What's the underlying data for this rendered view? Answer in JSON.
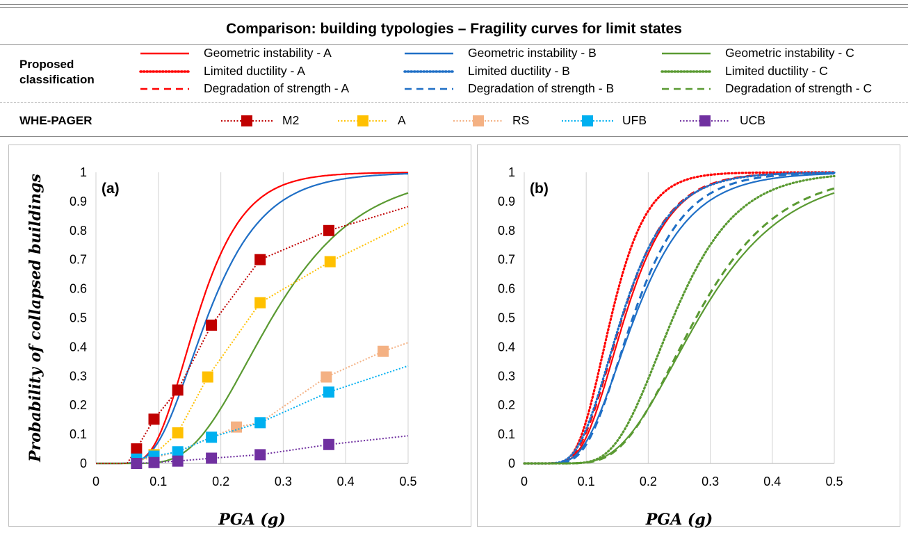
{
  "title": "Comparison: building typologies – Fragility curves for limit states",
  "legend": {
    "proposed_label": [
      "Proposed",
      "classification"
    ],
    "pager_label": "WHE-PAGER",
    "proposed_items": [
      {
        "label": "Geometric instability - A",
        "color": "#ff0000",
        "style": "solid"
      },
      {
        "label": "Limited ductility - A",
        "color": "#ff0000",
        "style": "dotted"
      },
      {
        "label": "Degradation of strength - A",
        "color": "#ff0000",
        "style": "dashed"
      },
      {
        "label": "Geometric instability - B",
        "color": "#1f6fc6",
        "style": "solid"
      },
      {
        "label": "Limited ductility - B",
        "color": "#1f6fc6",
        "style": "dotted"
      },
      {
        "label": "Degradation of strength - B",
        "color": "#1f6fc6",
        "style": "dashed"
      },
      {
        "label": "Geometric instability - C",
        "color": "#5a9a32",
        "style": "solid"
      },
      {
        "label": "Limited ductility - C",
        "color": "#5a9a32",
        "style": "dotted"
      },
      {
        "label": "Degradation of strength - C",
        "color": "#5a9a32",
        "style": "dashed"
      }
    ],
    "pager_items": [
      {
        "label": "M2",
        "color": "#c00000"
      },
      {
        "label": "A",
        "color": "#ffc000"
      },
      {
        "label": "RS",
        "color": "#f4b183"
      },
      {
        "label": "UFB",
        "color": "#00b0f0"
      },
      {
        "label": "UCB",
        "color": "#7030a0"
      }
    ]
  },
  "chart_data": [
    {
      "type": "line",
      "panel_label": "(a)",
      "xlabel": "PGA (g)",
      "ylabel": "Probability of collapsed buildings",
      "xlim": [
        0,
        0.5
      ],
      "ylim": [
        0,
        1
      ],
      "x_ticks": [
        "0",
        "0.1",
        "0.2",
        "0.3",
        "0.4",
        "0.5"
      ],
      "y_ticks": [
        "0",
        "0.1",
        "0.2",
        "0.3",
        "0.4",
        "0.5",
        "0.6",
        "0.7",
        "0.8",
        "0.9",
        "1"
      ],
      "grid": "vertical",
      "series": [
        {
          "name": "Geometric instability - A",
          "color": "#ff0000",
          "style": "solid",
          "kind": "lognormal",
          "median": 0.162,
          "beta": 0.36
        },
        {
          "name": "Geometric instability - B",
          "color": "#1f6fc6",
          "style": "solid",
          "kind": "lognormal",
          "median": 0.178,
          "beta": 0.4
        },
        {
          "name": "Geometric instability - C",
          "color": "#5a9a32",
          "style": "solid",
          "kind": "lognormal",
          "median": 0.282,
          "beta": 0.39
        },
        {
          "name": "M2",
          "color": "#c00000",
          "style": "markers",
          "x": [
            0,
            0.05,
            0.065,
            0.093,
            0.131,
            0.185,
            0.263,
            0.373,
            0.5
          ],
          "y": [
            0,
            0,
            0.05,
            0.152,
            0.252,
            0.475,
            0.7,
            0.8,
            0.882
          ],
          "marker_idx": [
            2,
            3,
            4,
            5,
            6,
            7
          ]
        },
        {
          "name": "A",
          "color": "#ffc000",
          "style": "markers",
          "x": [
            0.065,
            0.093,
            0.131,
            0.179,
            0.263,
            0.375,
            0.5
          ],
          "y": [
            0.005,
            0.03,
            0.105,
            0.297,
            0.552,
            0.693,
            0.825
          ],
          "marker_idx": [
            1,
            2,
            3,
            4,
            5
          ]
        },
        {
          "name": "RS",
          "color": "#f4b183",
          "style": "markers",
          "x": [
            0.065,
            0.093,
            0.131,
            0.185,
            0.225,
            0.263,
            0.369,
            0.46,
            0.5
          ],
          "y": [
            0.01,
            0.02,
            0.04,
            0.09,
            0.125,
            0.14,
            0.297,
            0.385,
            0.415
          ],
          "marker_idx": [
            4,
            6,
            7
          ]
        },
        {
          "name": "UFB",
          "color": "#00b0f0",
          "style": "markers",
          "x": [
            0.065,
            0.093,
            0.131,
            0.185,
            0.263,
            0.373,
            0.5
          ],
          "y": [
            0.015,
            0.025,
            0.04,
            0.09,
            0.14,
            0.245,
            0.335
          ],
          "marker_idx": [
            0,
            1,
            2,
            3,
            4,
            5
          ]
        },
        {
          "name": "UCB",
          "color": "#7030a0",
          "style": "markers",
          "x": [
            0.065,
            0.093,
            0.131,
            0.185,
            0.263,
            0.373,
            0.5
          ],
          "y": [
            0.0,
            0.003,
            0.008,
            0.018,
            0.03,
            0.065,
            0.095
          ],
          "marker_idx": [
            0,
            1,
            2,
            3,
            4,
            5
          ]
        }
      ]
    },
    {
      "type": "line",
      "panel_label": "(b)",
      "xlabel": "PGA (g)",
      "ylabel": "",
      "xlim": [
        0,
        0.5
      ],
      "ylim": [
        0,
        1
      ],
      "x_ticks": [
        "0",
        "0.1",
        "0.2",
        "0.3",
        "0.4",
        "0.5"
      ],
      "y_ticks": [
        "0",
        "0.1",
        "0.2",
        "0.3",
        "0.4",
        "0.5",
        "0.6",
        "0.7",
        "0.8",
        "0.9",
        "1"
      ],
      "grid": "vertical",
      "series": [
        {
          "name": "Limited ductility - A",
          "color": "#ff0000",
          "style": "dotted",
          "kind": "lognormal",
          "median": 0.14,
          "beta": 0.32
        },
        {
          "name": "Degradation of strength - A",
          "color": "#ff0000",
          "style": "dashed",
          "kind": "lognormal",
          "median": 0.158,
          "beta": 0.37
        },
        {
          "name": "Geometric instability - A",
          "color": "#ff0000",
          "style": "solid",
          "kind": "lognormal",
          "median": 0.162,
          "beta": 0.36
        },
        {
          "name": "Limited ductility - B",
          "color": "#1f6fc6",
          "style": "dotted",
          "kind": "lognormal",
          "median": 0.157,
          "beta": 0.38
        },
        {
          "name": "Degradation of strength - B",
          "color": "#1f6fc6",
          "style": "dashed",
          "kind": "lognormal",
          "median": 0.175,
          "beta": 0.37
        },
        {
          "name": "Geometric instability - B",
          "color": "#1f6fc6",
          "style": "solid",
          "kind": "lognormal",
          "median": 0.178,
          "beta": 0.4
        },
        {
          "name": "Limited ductility - C",
          "color": "#5a9a32",
          "style": "dotted",
          "kind": "lognormal",
          "median": 0.24,
          "beta": 0.33
        },
        {
          "name": "Degradation of strength - C",
          "color": "#5a9a32",
          "style": "dashed",
          "kind": "lognormal",
          "median": 0.277,
          "beta": 0.37
        },
        {
          "name": "Geometric instability - C",
          "color": "#5a9a32",
          "style": "solid",
          "kind": "lognormal",
          "median": 0.282,
          "beta": 0.39
        }
      ]
    }
  ]
}
